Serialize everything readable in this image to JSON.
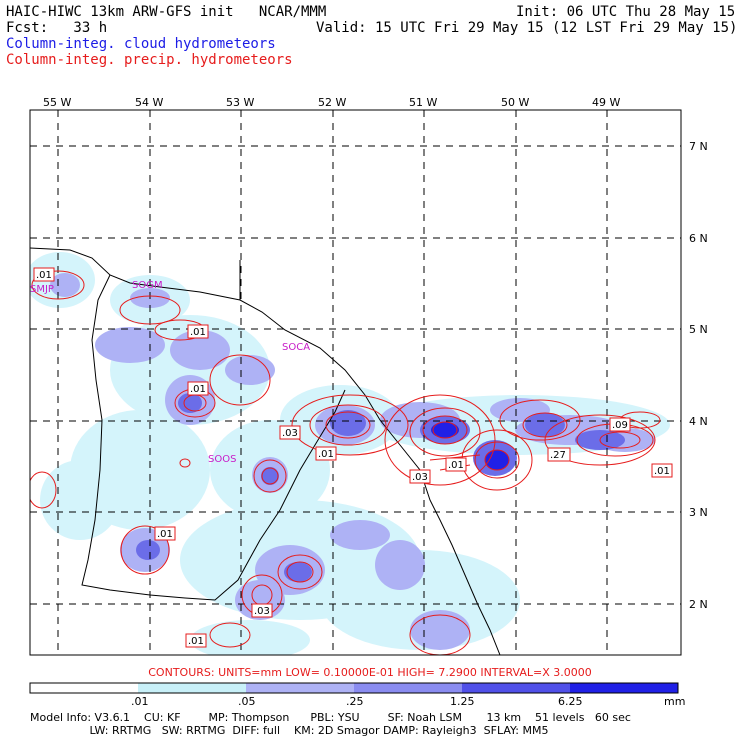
{
  "header": {
    "model_line": "HAIC-HIWC 13km ARW-GFS init   NCAR/MMM",
    "fcst_line": "Fcst:   33 h",
    "init_line": "Init: 06 UTC Thu 28 May 15",
    "valid_line": "Valid: 15 UTC Fri 29 May 15 (12 LST Fri 29 May 15)",
    "legend_cloud": "Column-integ. cloud hydrometeors",
    "legend_precip": "Column-integ. precip. hydrometeors"
  },
  "map": {
    "lon_labels": [
      "55 W",
      "54 W",
      "53 W",
      "52 W",
      "51 W",
      "50 W",
      "49 W"
    ],
    "lat_labels": [
      "7 N",
      "6 N",
      "5 N",
      "4 N",
      "3 N",
      "2 N"
    ],
    "stations": [
      "SMJP",
      "SOGM",
      "SOCA",
      "SOOS"
    ],
    "contour_labels": [
      ".01",
      ".01",
      ".01",
      ".03",
      ".01",
      ".01",
      ".01",
      ".03",
      ".27",
      ".09",
      ".01",
      ".03",
      ".01"
    ],
    "colors": {
      "cloud_light": "#d4f4fb",
      "cloud_mid": "#aeb2f5",
      "cloud_dark": "#6b6de8",
      "cloud_core": "#2020e6",
      "precip": "#e61c1c",
      "station": "#c81cc8"
    }
  },
  "contours_text": "CONTOURS:  UNITS=mm   LOW= 0.10000E-01   HIGH=  7.2900        INTERVAL=X  3.0000",
  "colorbar": {
    "labels": [
      ".01",
      ".05",
      ".25",
      "1.25",
      "6.25"
    ],
    "units": "mm",
    "colors": [
      "#ffffff",
      "#c8f0f8",
      "#aeb2f5",
      "#8a8cf0",
      "#5050e8",
      "#2020e6"
    ]
  },
  "footer": {
    "line1": "Model Info: V3.6.1    CU: KF        MP: Thompson      PBL: YSU        SF: Noah LSM       13 km    51 levels   60 sec",
    "line2": "                 LW: RRTMG   SW: RRTMG  DIFF: full    KM: 2D Smagor DAMP: Rayleigh3  SFLAY: MM5"
  }
}
